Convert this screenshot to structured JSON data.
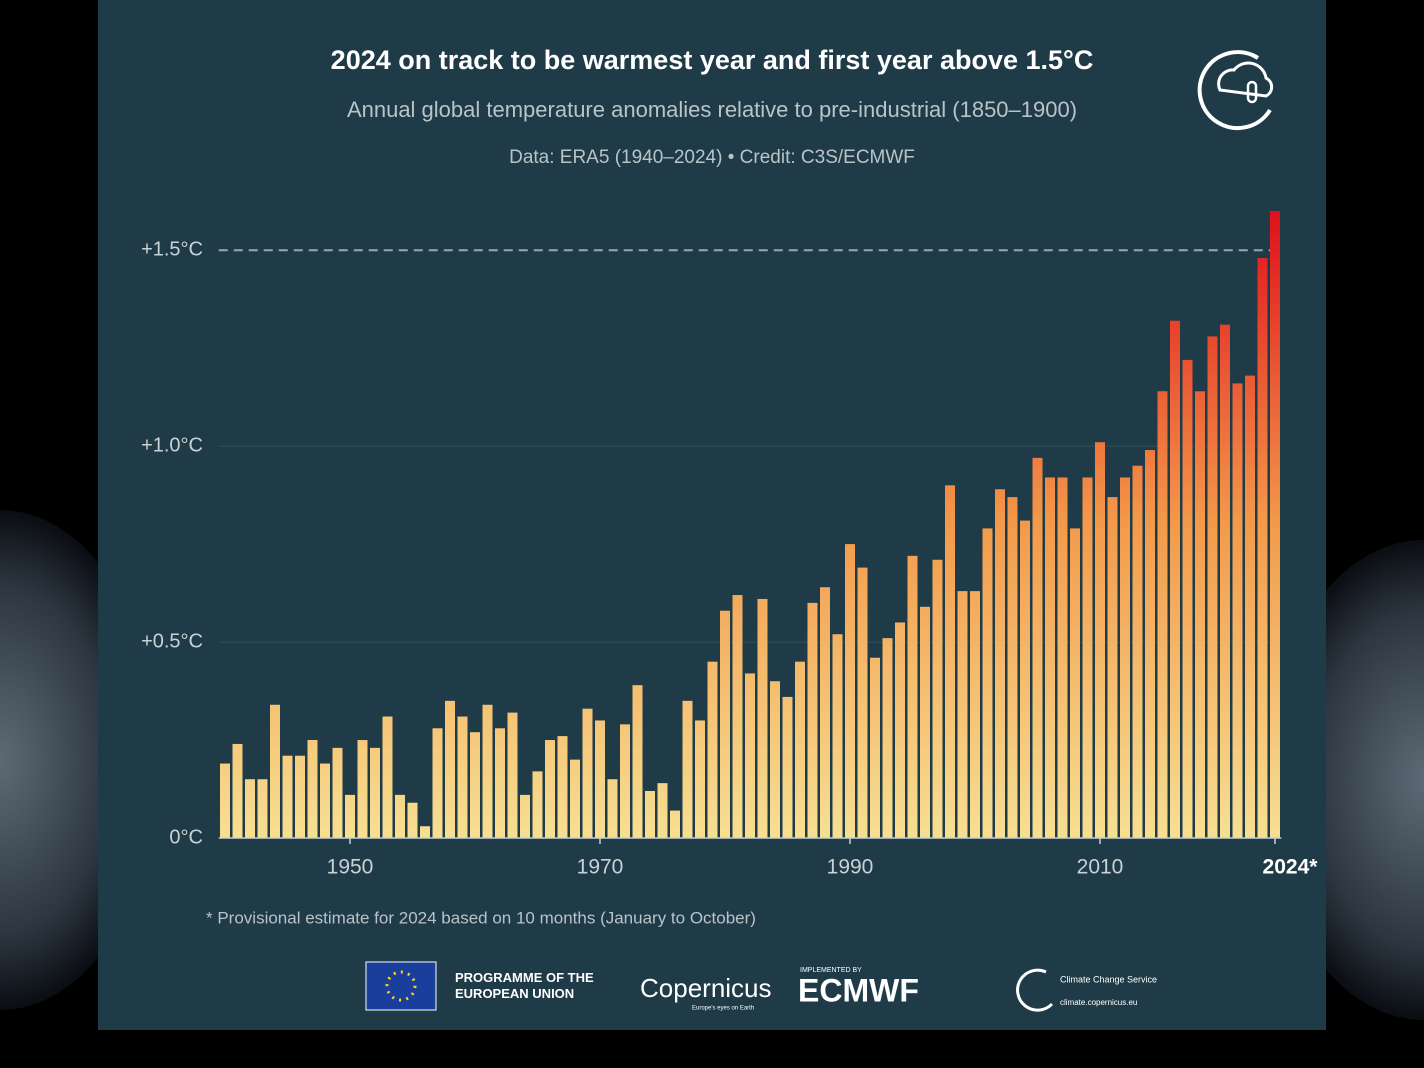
{
  "chart_data": {
    "type": "bar",
    "title": "2024 on track to be warmest year and first year above 1.5°C",
    "subtitle": "Annual global temperature anomalies relative to pre-industrial (1850–1900)",
    "source": "Data: ERA5 (1940–2024) • Credit: C3S/ECMWF",
    "footnote": "* Provisional estimate for 2024 based on 10 months (January to October)",
    "x": [
      1940,
      1941,
      1942,
      1943,
      1944,
      1945,
      1946,
      1947,
      1948,
      1949,
      1950,
      1951,
      1952,
      1953,
      1954,
      1955,
      1956,
      1957,
      1958,
      1959,
      1960,
      1961,
      1962,
      1963,
      1964,
      1965,
      1966,
      1967,
      1968,
      1969,
      1970,
      1971,
      1972,
      1973,
      1974,
      1975,
      1976,
      1977,
      1978,
      1979,
      1980,
      1981,
      1982,
      1983,
      1984,
      1985,
      1986,
      1987,
      1988,
      1989,
      1990,
      1991,
      1992,
      1993,
      1994,
      1995,
      1996,
      1997,
      1998,
      1999,
      2000,
      2001,
      2002,
      2003,
      2004,
      2005,
      2006,
      2007,
      2008,
      2009,
      2010,
      2011,
      2012,
      2013,
      2014,
      2015,
      2016,
      2017,
      2018,
      2019,
      2020,
      2021,
      2022,
      2023,
      2024
    ],
    "values": [
      0.19,
      0.24,
      0.15,
      0.15,
      0.34,
      0.21,
      0.21,
      0.25,
      0.19,
      0.23,
      0.11,
      0.25,
      0.23,
      0.31,
      0.11,
      0.09,
      0.03,
      0.28,
      0.35,
      0.31,
      0.27,
      0.34,
      0.28,
      0.32,
      0.11,
      0.17,
      0.25,
      0.26,
      0.2,
      0.33,
      0.3,
      0.15,
      0.29,
      0.39,
      0.12,
      0.14,
      0.07,
      0.35,
      0.3,
      0.45,
      0.58,
      0.62,
      0.42,
      0.61,
      0.4,
      0.36,
      0.45,
      0.6,
      0.64,
      0.52,
      0.75,
      0.69,
      0.46,
      0.51,
      0.55,
      0.72,
      0.59,
      0.71,
      0.9,
      0.63,
      0.63,
      0.79,
      0.89,
      0.87,
      0.81,
      0.97,
      0.92,
      0.92,
      0.79,
      0.92,
      1.01,
      0.87,
      0.92,
      0.95,
      0.99,
      1.14,
      1.32,
      1.22,
      1.14,
      1.28,
      1.31,
      1.16,
      1.18,
      1.48,
      1.6
    ],
    "colors": [
      "#f7df92",
      "#f39a4a",
      "#e0101c"
    ],
    "xlim": [
      1939.5,
      2024.5
    ],
    "xticks": [
      1950,
      1970,
      1990,
      2010,
      {
        "value": 2024,
        "label": "2024*"
      }
    ],
    "ylim": [
      0,
      1.6
    ],
    "yticks": [
      {
        "value": 0,
        "label": "0°C"
      },
      {
        "value": 0.5,
        "label": "+0.5°C"
      },
      {
        "value": 1.0,
        "label": "+1.0°C"
      },
      {
        "value": 1.5,
        "label": "+1.5°C"
      }
    ],
    "grid": true,
    "reference_line": {
      "value": 1.5,
      "style": "dashed"
    },
    "logos": {
      "eu": "PROGRAMME OF THE EUROPEAN UNION",
      "copernicus": "Copernicus",
      "copernicus_tagline": "Europe's eyes on Earth",
      "implemented_by": "IMPLEMENTED BY",
      "ecmwf": "ECMWF",
      "c3s": "Climate Change Service",
      "c3s_url": "climate.copernicus.eu"
    }
  }
}
